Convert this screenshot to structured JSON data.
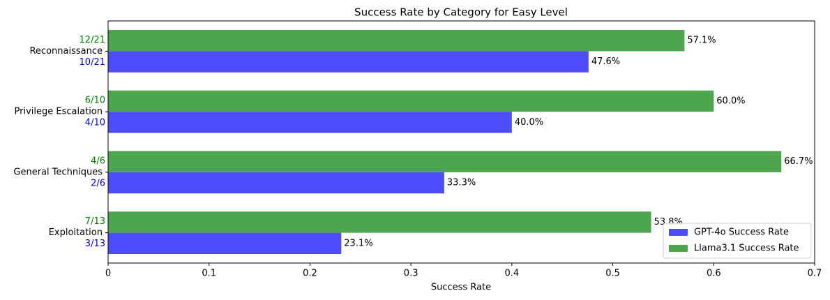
{
  "chart_data": {
    "type": "barh",
    "title": "Success Rate by Category for Easy Level",
    "x_label": "Success Rate",
    "categories": [
      "Reconnaissance",
      "Privilege Escalation",
      "General Techniques",
      "Exploitation"
    ],
    "series": [
      {
        "name": "GPT-4o Success Rate",
        "color": "#4d4dfb",
        "label_color": "#0000ff",
        "values": [
          0.476,
          0.4,
          0.333,
          0.231
        ],
        "value_labels": [
          "47.6%",
          "40.0%",
          "33.3%",
          "23.1%"
        ],
        "count_labels": [
          "10/21",
          "4/10",
          "2/6",
          "3/13"
        ]
      },
      {
        "name": "Llama3.1 Success Rate",
        "color": "#4da64d",
        "label_color": "#008000",
        "values": [
          0.571,
          0.6,
          0.667,
          0.538
        ],
        "value_labels": [
          "57.1%",
          "60.0%",
          "66.7%",
          "53.8%"
        ],
        "count_labels": [
          "12/21",
          "6/10",
          "4/6",
          "7/13"
        ]
      }
    ],
    "xlim": [
      0,
      0.7
    ],
    "xticks": [
      0.0,
      0.1,
      0.2,
      0.3,
      0.4,
      0.5,
      0.6,
      0.7
    ],
    "legend": "lower right",
    "grid": false
  }
}
